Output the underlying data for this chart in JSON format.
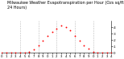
{
  "title": "Milwaukee Weather Evapotranspiration per Hour (Ozs sq/ft 24 Hours)",
  "x_hours": [
    0,
    1,
    2,
    3,
    4,
    5,
    6,
    7,
    8,
    9,
    10,
    11,
    12,
    13,
    14,
    15,
    16,
    17,
    18,
    19,
    20,
    21,
    22,
    23,
    24
  ],
  "y_values": [
    0,
    0,
    0,
    0,
    0,
    0,
    0.01,
    0.05,
    0.12,
    0.19,
    0.26,
    0.33,
    0.38,
    0.43,
    0.4,
    0.35,
    0.27,
    0.19,
    0.12,
    0.06,
    0.02,
    0,
    0,
    0,
    0
  ],
  "dot_color": "#ff0000",
  "bg_color": "#ffffff",
  "grid_color": "#bbbbbb",
  "xlim": [
    0,
    24
  ],
  "ylim": [
    0,
    0.5
  ],
  "ytick_vals": [
    0.0,
    0.1,
    0.2,
    0.3,
    0.4
  ],
  "ytick_labels": [
    "0",
    ".1",
    ".2",
    ".3",
    ".4"
  ],
  "xticks": [
    0,
    1,
    2,
    3,
    4,
    5,
    6,
    7,
    8,
    9,
    10,
    11,
    12,
    13,
    14,
    15,
    16,
    17,
    18,
    19,
    20,
    21,
    22,
    23,
    24
  ],
  "vgrid_positions": [
    4,
    8,
    12,
    16,
    20,
    24
  ],
  "title_fontsize": 3.5,
  "tick_fontsize": 2.8,
  "dot_size": 1.8
}
